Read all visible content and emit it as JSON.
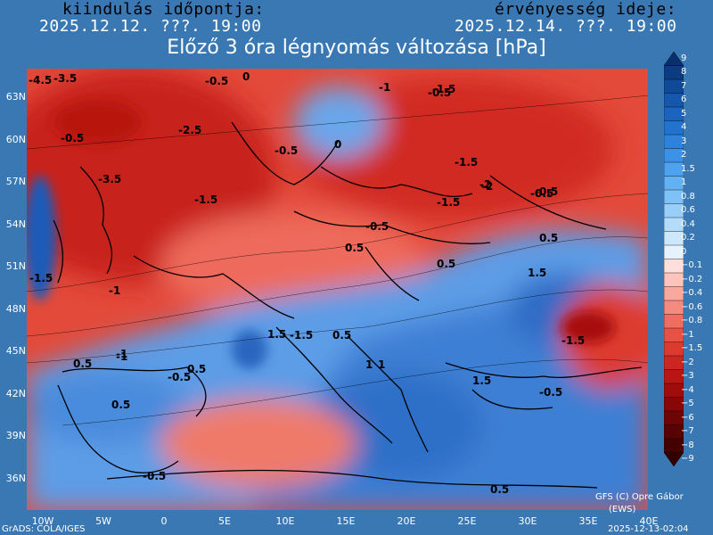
{
  "header": {
    "init_label": "kiindulás időpontja:",
    "init_time": "2025.12.12. ???. 19:00",
    "valid_label": "érvényesség ideje:",
    "valid_time": "2025.12.14. ???. 19:00"
  },
  "title": "Előző 3 óra légnyomás változása [hPa]",
  "lat_labels": [
    "63N",
    "60N",
    "57N",
    "54N",
    "51N",
    "48N",
    "45N",
    "42N",
    "39N",
    "36N"
  ],
  "lon_labels": [
    "10W",
    "5W",
    "0",
    "5E",
    "10E",
    "15E",
    "20E",
    "25E",
    "30E",
    "35E",
    "40E"
  ],
  "legend": {
    "values": [
      "9",
      "8",
      "7",
      "6",
      "5",
      "4",
      "3",
      "2",
      "1.5",
      "1",
      "0.8",
      "0.6",
      "0.4",
      "0.2",
      "0",
      "−0.1",
      "−0.2",
      "−0.4",
      "−0.6",
      "−0.8",
      "−1",
      "−1.5",
      "−2",
      "−3",
      "−4",
      "−5",
      "−6",
      "−7",
      "−8",
      "−9"
    ],
    "colors": [
      "#08306b",
      "#0b3c82",
      "#0f4a99",
      "#1457ad",
      "#1a64bf",
      "#2272cf",
      "#2e82dc",
      "#3c92e6",
      "#4ea2ee",
      "#62b1f3",
      "#7dc1f6",
      "#98cff8",
      "#b3dcfa",
      "#cde8fc",
      "#e6f3fe",
      "#fde0dc",
      "#fbc5be",
      "#f8a89f",
      "#f48b80",
      "#ef6d62",
      "#e85246",
      "#dc3a2f",
      "#cc2620",
      "#b81614",
      "#a00c0c",
      "#870708",
      "#6e0406",
      "#570204",
      "#440102",
      "#330000"
    ]
  },
  "contour_labels": [
    "-4.5",
    "-3.5",
    "-0.5",
    "-0.5",
    "0",
    "-1",
    "-1.5",
    "-2.5",
    "-0.5",
    "0",
    "-0.5",
    "-1.5",
    "-2",
    "-1.5",
    "-2",
    "-3.5",
    "-1.5",
    "-0.5",
    "-0.5",
    "1.5",
    "-1.5",
    "-1",
    "0.5",
    "1",
    "0.5",
    "-1",
    "0.5",
    "0.5",
    "-1.5",
    "-0.5",
    "1",
    "1.5",
    "0.5",
    "-1.5",
    "1.5",
    "0.5",
    "-0.5",
    "0.5",
    "-1",
    "-0.5",
    "0.5",
    "-0.5"
  ],
  "footer": {
    "credit": "GFS (C) Opre Gábor",
    "credit2": "(EWS)",
    "grads": "GrADS: COLA/IGES",
    "timestamp": "2025-12-13-02:04"
  }
}
